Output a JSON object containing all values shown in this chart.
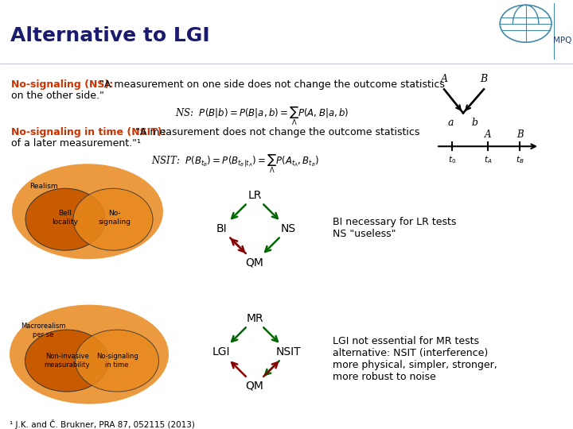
{
  "title": "Alternative to LGI",
  "title_fontsize": 18,
  "title_color": "#1a1a6e",
  "ns_label": "No-signaling (NS):",
  "ns_quote": " \"A measurement on one side does not change the outcome statistics",
  "ns_quote2": "on the other side.\"",
  "nsit_label": "No-signaling in time (NSIT):",
  "nsit_quote": " \"A measurement does not change the outcome statistics",
  "nsit_quote2": "of a later measurement.\"¹",
  "bi_text": "BI necessary for LR tests\nNS \"useless\"",
  "lgi_text": "LGI not essential for MR tests\nalternative: NSIT (interference)\nmore physical, simpler, stronger,\nmore robust to noise",
  "footnote": "¹ J.K. and Č. Brukner, PRA 87, 052115 (2013)",
  "diagram1_nodes": [
    "LR",
    "BI",
    "NS",
    "QM"
  ],
  "diagram2_nodes": [
    "MR",
    "LGI",
    "NSIT",
    "QM"
  ],
  "green_arrows_d1": [
    [
      0,
      1
    ],
    [
      0,
      2
    ],
    [
      2,
      3
    ]
  ],
  "red_arrows_d1": [
    [
      3,
      1
    ],
    [
      1,
      3
    ]
  ],
  "green_arrows_d2": [
    [
      0,
      1
    ],
    [
      0,
      2
    ],
    [
      2,
      3
    ]
  ],
  "red_arrows_d2": [
    [
      3,
      1
    ],
    [
      3,
      2
    ]
  ],
  "orange_color": "#e8891e",
  "dark_orange": "#c85a00",
  "highlight_color": "#cc3300",
  "green_arrow": "#006600",
  "red_arrow": "#880000"
}
